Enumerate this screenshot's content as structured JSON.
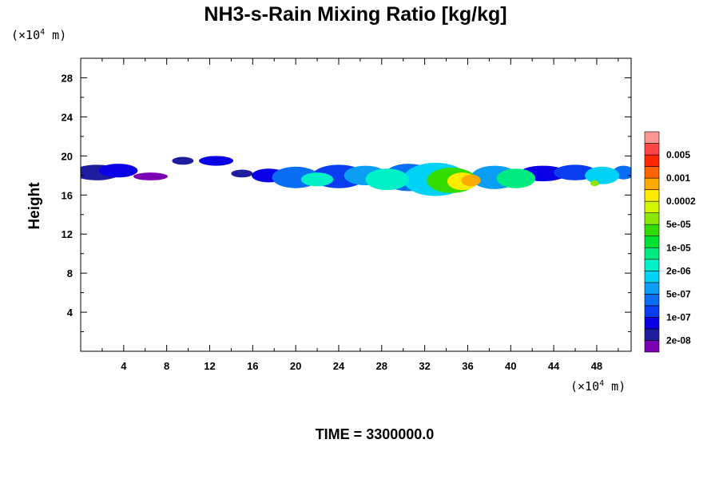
{
  "chart_data": {
    "type": "heatmap",
    "title": "NH3-s-Rain Mixing Ratio [kg/kg]",
    "ylabel": "Height",
    "xlabel": "",
    "x_unit": {
      "base": "(×10",
      "exp": "4",
      "rest": " m)"
    },
    "y_unit": {
      "base": "(×10",
      "exp": "4",
      "rest": " m)"
    },
    "xlim": [
      0,
      51.2
    ],
    "ylim": [
      0,
      30
    ],
    "x_ticks": [
      4,
      8,
      12,
      16,
      20,
      24,
      28,
      32,
      36,
      40,
      44,
      48
    ],
    "y_ticks": [
      4,
      8,
      12,
      16,
      20,
      24,
      28
    ],
    "colorbar": {
      "colors": [
        "#7a00b4",
        "#1d1d9e",
        "#0a00e6",
        "#0a3cf0",
        "#0a6ef5",
        "#0a9ff5",
        "#00d2f5",
        "#00f0c8",
        "#00eb82",
        "#00e132",
        "#32dc00",
        "#8ce600",
        "#d2f500",
        "#ffeb00",
        "#ffaa00",
        "#ff6400",
        "#ff2800",
        "#ff4646",
        "#ff9696"
      ],
      "labels": [
        "2e-08",
        "1e-07",
        "5e-07",
        "2e-06",
        "1e-05",
        "5e-05",
        "0.0002",
        "0.001",
        "0.005"
      ]
    },
    "field_blobs": [
      {
        "x": 1.5,
        "y": 18.3,
        "rx": 2.2,
        "ry": 0.8,
        "level": 1
      },
      {
        "x": 3.5,
        "y": 18.5,
        "rx": 1.8,
        "ry": 0.7,
        "level": 2
      },
      {
        "x": 6.5,
        "y": 17.9,
        "rx": 1.6,
        "ry": 0.4,
        "level": 0
      },
      {
        "x": 9.5,
        "y": 19.5,
        "rx": 1.0,
        "ry": 0.4,
        "level": 1
      },
      {
        "x": 12.6,
        "y": 19.5,
        "rx": 1.6,
        "ry": 0.5,
        "level": 2
      },
      {
        "x": 15.0,
        "y": 18.2,
        "rx": 1.0,
        "ry": 0.4,
        "level": 1
      },
      {
        "x": 17.5,
        "y": 18.0,
        "rx": 1.6,
        "ry": 0.7,
        "level": 2
      },
      {
        "x": 20.0,
        "y": 17.8,
        "rx": 2.2,
        "ry": 1.1,
        "level": 4
      },
      {
        "x": 22.0,
        "y": 17.6,
        "rx": 1.5,
        "ry": 0.7,
        "level": 7
      },
      {
        "x": 24.0,
        "y": 17.9,
        "rx": 2.5,
        "ry": 1.2,
        "level": 3
      },
      {
        "x": 26.5,
        "y": 18.0,
        "rx": 2.0,
        "ry": 1.0,
        "level": 5
      },
      {
        "x": 28.5,
        "y": 17.6,
        "rx": 2.0,
        "ry": 1.1,
        "level": 7
      },
      {
        "x": 30.5,
        "y": 17.8,
        "rx": 2.4,
        "ry": 1.4,
        "level": 4
      },
      {
        "x": 33.0,
        "y": 17.6,
        "rx": 3.0,
        "ry": 1.7,
        "level": 6
      },
      {
        "x": 34.5,
        "y": 17.5,
        "rx": 2.3,
        "ry": 1.3,
        "level": 10
      },
      {
        "x": 35.5,
        "y": 17.4,
        "rx": 1.4,
        "ry": 0.9,
        "level": 13
      },
      {
        "x": 36.3,
        "y": 17.5,
        "rx": 0.9,
        "ry": 0.6,
        "level": 14
      },
      {
        "x": 38.5,
        "y": 17.8,
        "rx": 2.2,
        "ry": 1.2,
        "level": 5
      },
      {
        "x": 40.5,
        "y": 17.7,
        "rx": 1.8,
        "ry": 1.0,
        "level": 8
      },
      {
        "x": 43.0,
        "y": 18.2,
        "rx": 2.2,
        "ry": 0.8,
        "level": 2
      },
      {
        "x": 46.0,
        "y": 18.3,
        "rx": 2.0,
        "ry": 0.8,
        "level": 3
      },
      {
        "x": 48.5,
        "y": 18.0,
        "rx": 1.6,
        "ry": 0.9,
        "level": 6
      },
      {
        "x": 50.5,
        "y": 18.3,
        "rx": 1.0,
        "ry": 0.7,
        "level": 4
      },
      {
        "x": 47.8,
        "y": 17.2,
        "rx": 0.4,
        "ry": 0.3,
        "level": 11
      }
    ]
  },
  "footer": {
    "time_text": "TIME = 3300000.0"
  }
}
